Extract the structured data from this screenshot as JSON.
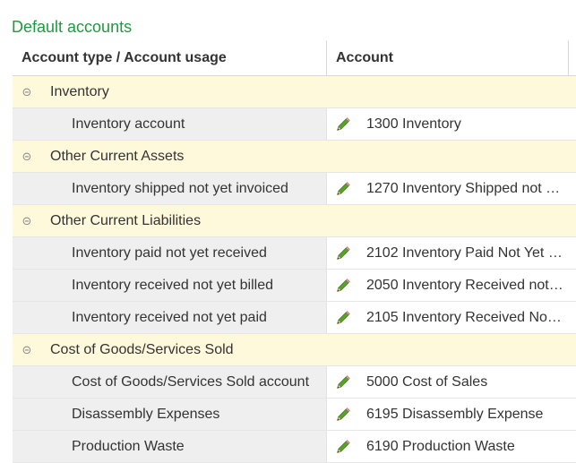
{
  "title": "Default accounts",
  "columns": {
    "type_header": "Account type / Account usage",
    "account_header": "Account"
  },
  "icons": {
    "collapse": "collapse-minus-icon",
    "edit": "pencil-edit-icon"
  },
  "colors": {
    "title": "#1e9b3c",
    "group_bg": "#fff9db",
    "item_bg": "#efefef"
  },
  "groups": [
    {
      "label": "Inventory",
      "items": [
        {
          "usage": "Inventory account",
          "account": "1300 Inventory"
        }
      ]
    },
    {
      "label": "Other Current Assets",
      "items": [
        {
          "usage": "Inventory shipped not yet invoiced",
          "account": "1270 Inventory Shipped not …"
        }
      ]
    },
    {
      "label": "Other Current Liabilities",
      "items": [
        {
          "usage": "Inventory paid not yet received",
          "account": "2102 Inventory Paid Not Yet …"
        },
        {
          "usage": "Inventory received not yet billed",
          "account": "2050 Inventory Received not…"
        },
        {
          "usage": "Inventory received not yet paid",
          "account": "2105 Inventory Received Not…"
        }
      ]
    },
    {
      "label": "Cost of Goods/Services Sold",
      "items": [
        {
          "usage": "Cost of Goods/Services Sold account",
          "account": "5000 Cost of Sales"
        },
        {
          "usage": "Disassembly Expenses",
          "account": "6195 Disassembly Expense"
        },
        {
          "usage": "Production Waste",
          "account": "6190 Production Waste"
        }
      ]
    }
  ]
}
